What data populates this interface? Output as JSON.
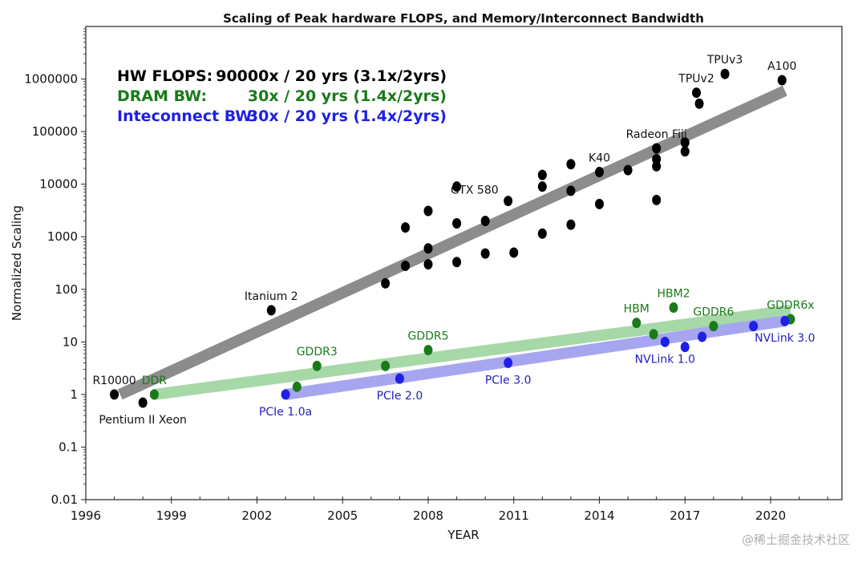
{
  "chart_data": {
    "type": "scatter",
    "title": "Scaling of Peak hardware FLOPS, and Memory/Interconnect Bandwidth",
    "xlabel": "YEAR",
    "ylabel": "Normalized Scaling",
    "yscale": "log",
    "xlim": [
      1996,
      2022.5
    ],
    "ylim": [
      0.01,
      10000000
    ],
    "xticks": [
      1996,
      1999,
      2002,
      2005,
      2008,
      2011,
      2014,
      2017,
      2020
    ],
    "yticks": [
      {
        "value": 0.01,
        "label": "0.01"
      },
      {
        "value": 0.1,
        "label": "0.1"
      },
      {
        "value": 1,
        "label": "1"
      },
      {
        "value": 10,
        "label": "10"
      },
      {
        "value": 100,
        "label": "100"
      },
      {
        "value": 1000,
        "label": "1000"
      },
      {
        "value": 10000,
        "label": "10000"
      },
      {
        "value": 100000,
        "label": "100000"
      },
      {
        "value": 1000000,
        "label": "1000000"
      }
    ],
    "legend": [
      {
        "label": "HW FLOPS:",
        "value": "90000x / 20 yrs (3.1x/2yrs)",
        "color": "#000000"
      },
      {
        "label": "DRAM BW:",
        "value": "30x / 20 yrs (1.4x/2yrs)",
        "color": "#1a7a1a"
      },
      {
        "label": "Inteconnect BW:",
        "value": "30x / 20 yrs (1.4x/2yrs)",
        "color": "#1f1fe6"
      }
    ],
    "series": [
      {
        "name": "HW FLOPS",
        "color": "#000000",
        "trend": {
          "x": [
            1997.2,
            2020.5
          ],
          "y": [
            1,
            600000
          ],
          "color": "#8c8c8c"
        },
        "points": [
          {
            "x": 1997,
            "y": 1,
            "label": "R10000",
            "pos": "above"
          },
          {
            "x": 1998,
            "y": 0.7,
            "label": "Pentium II Xeon",
            "pos": "below"
          },
          {
            "x": 2002.5,
            "y": 40,
            "label": "Itanium 2",
            "pos": "above"
          },
          {
            "x": 2006.5,
            "y": 130
          },
          {
            "x": 2007.2,
            "y": 280
          },
          {
            "x": 2007.2,
            "y": 1500
          },
          {
            "x": 2008,
            "y": 600
          },
          {
            "x": 2008,
            "y": 300
          },
          {
            "x": 2008,
            "y": 3100
          },
          {
            "x": 2009,
            "y": 330
          },
          {
            "x": 2009,
            "y": 1800
          },
          {
            "x": 2009,
            "y": 9000
          },
          {
            "x": 2010,
            "y": 2000
          },
          {
            "x": 2010,
            "y": 480
          },
          {
            "x": 2010.8,
            "y": 4800,
            "label": "GTX 580",
            "pos": "left"
          },
          {
            "x": 2011,
            "y": 500
          },
          {
            "x": 2012,
            "y": 15000
          },
          {
            "x": 2012,
            "y": 9000
          },
          {
            "x": 2012,
            "y": 1150
          },
          {
            "x": 2013,
            "y": 24000
          },
          {
            "x": 2013,
            "y": 7500
          },
          {
            "x": 2013,
            "y": 1700
          },
          {
            "x": 2014,
            "y": 17000,
            "label": "K40",
            "pos": "above"
          },
          {
            "x": 2014,
            "y": 4200
          },
          {
            "x": 2015,
            "y": 18500
          },
          {
            "x": 2016,
            "y": 48000,
            "label": "Radeon Fiji",
            "pos": "above"
          },
          {
            "x": 2016,
            "y": 30000
          },
          {
            "x": 2016,
            "y": 22000
          },
          {
            "x": 2016,
            "y": 5000
          },
          {
            "x": 2017,
            "y": 62000
          },
          {
            "x": 2017,
            "y": 42000
          },
          {
            "x": 2017.4,
            "y": 550000,
            "label": "TPUv2",
            "pos": "above"
          },
          {
            "x": 2017.5,
            "y": 340000
          },
          {
            "x": 2018.4,
            "y": 1250000,
            "label": "TPUv3",
            "pos": "above"
          },
          {
            "x": 2020.4,
            "y": 950000,
            "label": "A100",
            "pos": "above"
          }
        ]
      },
      {
        "name": "DRAM BW",
        "color": "#1a7a1a",
        "trend": {
          "x": [
            1998.4,
            2020.7
          ],
          "y": [
            1,
            40
          ],
          "color": "#a7d8a7"
        },
        "points": [
          {
            "x": 1998.4,
            "y": 1,
            "label": "DDR",
            "pos": "above"
          },
          {
            "x": 2003.4,
            "y": 1.4
          },
          {
            "x": 2004.1,
            "y": 3.5,
            "label": "GDDR3",
            "pos": "above"
          },
          {
            "x": 2006.5,
            "y": 3.5
          },
          {
            "x": 2008,
            "y": 7,
            "label": "GDDR5",
            "pos": "above"
          },
          {
            "x": 2015.3,
            "y": 23,
            "label": "HBM",
            "pos": "above"
          },
          {
            "x": 2015.9,
            "y": 14
          },
          {
            "x": 2016.6,
            "y": 45,
            "label": "HBM2",
            "pos": "above"
          },
          {
            "x": 2018,
            "y": 20,
            "label": "GDDR6",
            "pos": "above"
          },
          {
            "x": 2020.7,
            "y": 27,
            "label": "GDDR6x",
            "pos": "above"
          }
        ]
      },
      {
        "name": "Interconnect BW",
        "color": "#1f1fe6",
        "trend": {
          "x": [
            2003,
            2020.5
          ],
          "y": [
            1,
            25
          ],
          "color": "#a6a6f0"
        },
        "points": [
          {
            "x": 2003,
            "y": 1,
            "label": "PCIe 1.0a",
            "pos": "below"
          },
          {
            "x": 2007,
            "y": 2,
            "label": "PCIe 2.0",
            "pos": "below"
          },
          {
            "x": 2010.8,
            "y": 4,
            "label": "PCIe 3.0",
            "pos": "below"
          },
          {
            "x": 2016.3,
            "y": 10,
            "label": "NVLink 1.0",
            "pos": "below"
          },
          {
            "x": 2017,
            "y": 8
          },
          {
            "x": 2017.6,
            "y": 12.5
          },
          {
            "x": 2019.4,
            "y": 20
          },
          {
            "x": 2020.5,
            "y": 25,
            "label": "NVLink 3.0",
            "pos": "below"
          }
        ]
      }
    ]
  },
  "watermark": "@稀土掘金技术社区"
}
